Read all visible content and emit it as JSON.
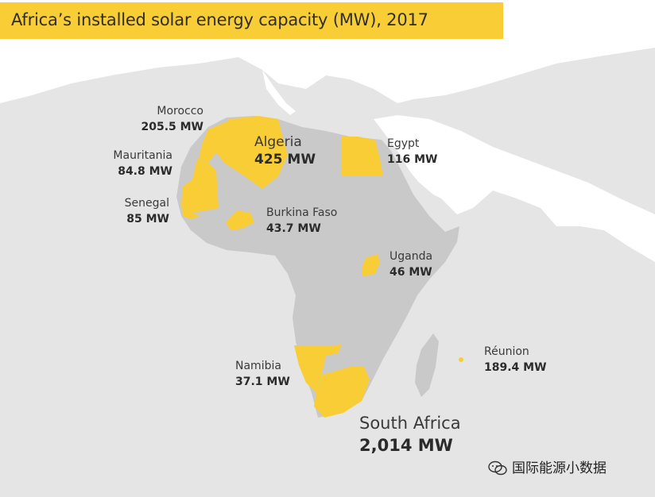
{
  "title": "Africa’s installed solar energy capacity (MW), 2017",
  "colors": {
    "background": "#e5e5e5",
    "land": "#ffffff",
    "africa": "#c9c9c9",
    "highlight": "#f9cd36",
    "text": "#333333"
  },
  "countries": [
    {
      "name": "Morocco",
      "value": "205.5 MW"
    },
    {
      "name": "Algeria",
      "value": "425 MW"
    },
    {
      "name": "Mauritania",
      "value": "84.8 MW"
    },
    {
      "name": "Senegal",
      "value": "85 MW"
    },
    {
      "name": "Burkina Faso",
      "value": "43.7 MW"
    },
    {
      "name": "Egypt",
      "value": "116 MW"
    },
    {
      "name": "Uganda",
      "value": "46 MW"
    },
    {
      "name": "Namibia",
      "value": "37.1 MW"
    },
    {
      "name": "Réunion",
      "value": "189.4 MW"
    },
    {
      "name": "South Africa",
      "value": "2,014 MW"
    }
  ],
  "watermark": "国际能源小数据"
}
